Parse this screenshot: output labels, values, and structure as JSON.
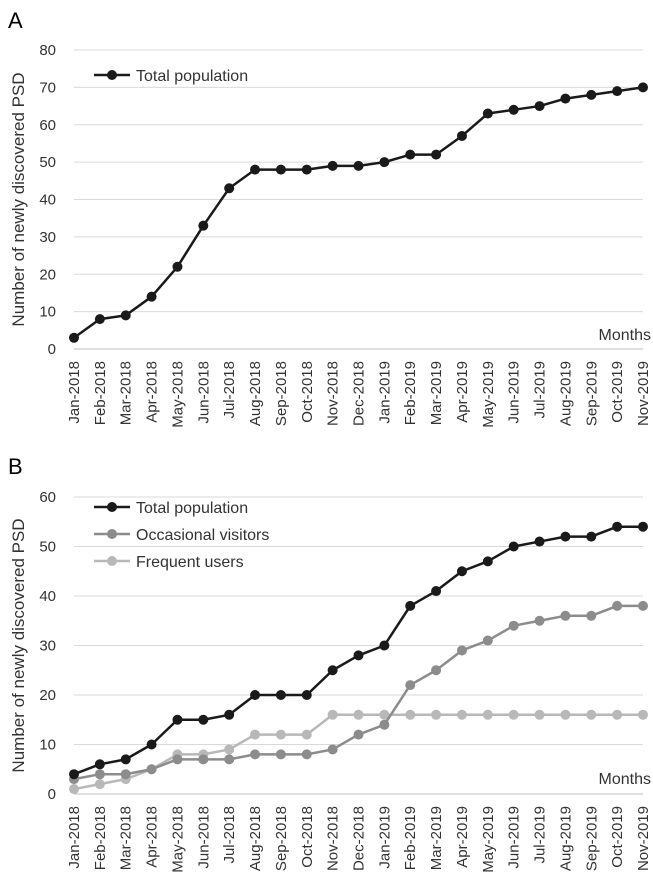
{
  "chart_data": [
    {
      "panel": "A",
      "type": "line",
      "ylabel": "Number of newly discovered PSD",
      "xlabel": "Months",
      "ylim": [
        0,
        80
      ],
      "yticks": [
        0,
        10,
        20,
        30,
        40,
        50,
        60,
        70,
        80
      ],
      "grid": true,
      "legend": "top-left",
      "categories": [
        "Jan-2018",
        "Feb-2018",
        "Mar-2018",
        "Apr-2018",
        "May-2018",
        "Jun-2018",
        "Jul-2018",
        "Aug-2018",
        "Sep-2018",
        "Oct-2018",
        "Nov-2018",
        "Dec-2018",
        "Jan-2019",
        "Feb-2019",
        "Mar-2019",
        "Apr-2019",
        "May-2019",
        "Jun-2019",
        "Jul-2019",
        "Aug-2019",
        "Sep-2019",
        "Oct-2019",
        "Nov-2019"
      ],
      "series": [
        {
          "name": "Total population",
          "color": "#1a1a1a",
          "values": [
            3,
            8,
            9,
            14,
            22,
            33,
            43,
            48,
            48,
            48,
            49,
            49,
            50,
            52,
            52,
            57,
            63,
            64,
            65,
            67,
            68,
            69,
            70
          ]
        }
      ]
    },
    {
      "panel": "B",
      "type": "line",
      "ylabel": "Number of newly discovered PSD",
      "xlabel": "Months",
      "ylim": [
        0,
        60
      ],
      "yticks": [
        0,
        10,
        20,
        30,
        40,
        50,
        60
      ],
      "grid": true,
      "legend": "top-left",
      "categories": [
        "Jan-2018",
        "Feb-2018",
        "Mar-2018",
        "Apr-2018",
        "May-2018",
        "Jun-2018",
        "Jul-2018",
        "Aug-2018",
        "Sep-2018",
        "Oct-2018",
        "Nov-2018",
        "Dec-2018",
        "Jan-2019",
        "Feb-2019",
        "Mar-2019",
        "Apr-2019",
        "May-2019",
        "Jun-2019",
        "Jul-2019",
        "Aug-2019",
        "Sep-2019",
        "Oct-2019",
        "Nov-2019"
      ],
      "series": [
        {
          "name": "Total population",
          "color": "#1a1a1a",
          "values": [
            4,
            6,
            7,
            10,
            15,
            15,
            16,
            20,
            20,
            20,
            25,
            28,
            30,
            38,
            41,
            45,
            47,
            50,
            51,
            52,
            52,
            54,
            54
          ]
        },
        {
          "name": "Occasional visitors",
          "color": "#8c8c8c",
          "values": [
            3,
            4,
            4,
            5,
            7,
            7,
            7,
            8,
            8,
            8,
            9,
            12,
            14,
            22,
            25,
            29,
            31,
            34,
            35,
            36,
            36,
            38,
            38
          ]
        },
        {
          "name": "Frequent users",
          "color": "#b8b8b8",
          "values": [
            1,
            2,
            3,
            5,
            8,
            8,
            9,
            12,
            12,
            12,
            16,
            16,
            16,
            16,
            16,
            16,
            16,
            16,
            16,
            16,
            16,
            16,
            16
          ]
        }
      ]
    }
  ]
}
